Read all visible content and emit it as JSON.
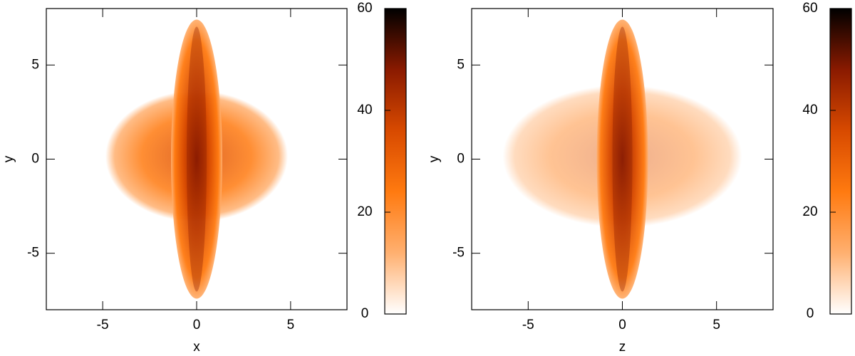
{
  "chart_data": [
    {
      "type": "heatmap",
      "xlabel": "x",
      "ylabel": "y",
      "xlim": [
        -8,
        8
      ],
      "ylim": [
        -8,
        8
      ],
      "xticks": [
        -5,
        0,
        5
      ],
      "yticks": [
        -5,
        0,
        5
      ],
      "clim": [
        0,
        60
      ],
      "cticks": [
        0,
        20,
        40,
        60
      ],
      "colormap": [
        "#ffffff",
        "#ffb070",
        "#ff7a10",
        "#d84a00",
        "#8a1a00",
        "#000000"
      ]
    },
    {
      "type": "heatmap",
      "xlabel": "z",
      "ylabel": "y",
      "xlim": [
        -8,
        8
      ],
      "ylim": [
        -8,
        8
      ],
      "xticks": [
        -5,
        0,
        5
      ],
      "yticks": [
        -5,
        0,
        5
      ],
      "clim": [
        0,
        60
      ],
      "cticks": [
        0,
        20,
        40,
        60
      ],
      "colormap": [
        "#ffffff",
        "#ffb070",
        "#ff7a10",
        "#d84a00",
        "#8a1a00",
        "#000000"
      ]
    }
  ]
}
